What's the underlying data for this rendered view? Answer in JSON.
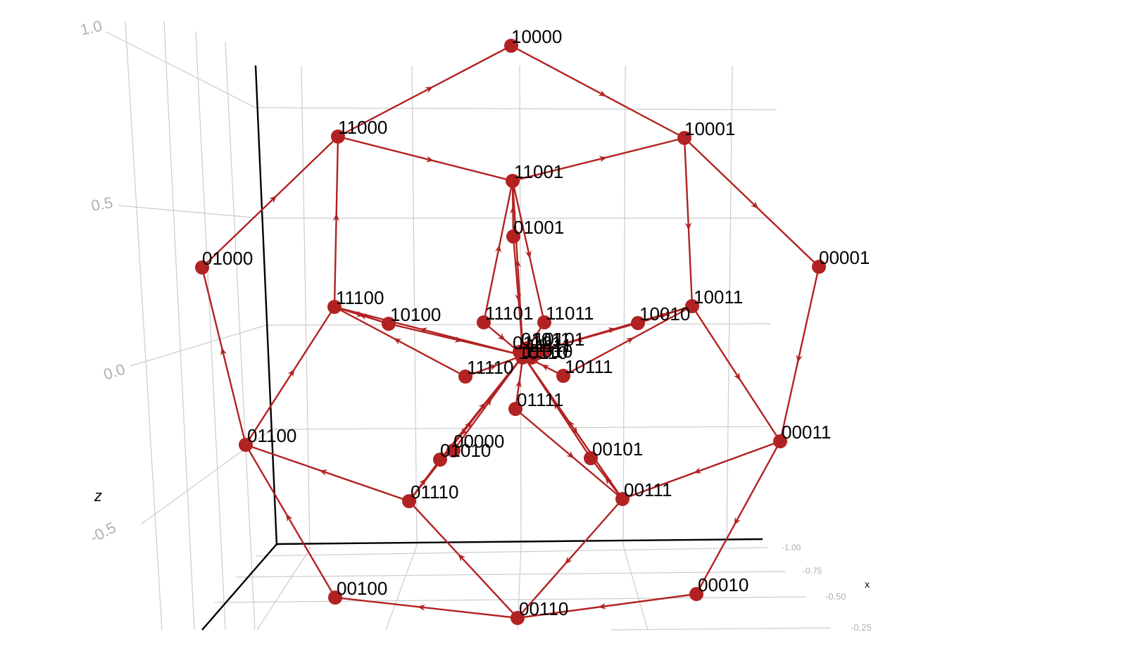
{
  "axes": {
    "z_title": "z",
    "x_title": "x",
    "z_ticks": [
      "1.0",
      "0.5",
      "0.0",
      "-0.5"
    ],
    "x_ticks": [
      "-1.00",
      "-0.75",
      "-0.50",
      "-0.25"
    ]
  },
  "colors": {
    "edge": "#b22222",
    "node": "#b22222"
  },
  "nodes": [
    {
      "id": "10000"
    },
    {
      "id": "11000"
    },
    {
      "id": "10001"
    },
    {
      "id": "11001"
    },
    {
      "id": "01001"
    },
    {
      "id": "01000"
    },
    {
      "id": "00001"
    },
    {
      "id": "11100"
    },
    {
      "id": "10100"
    },
    {
      "id": "11101"
    },
    {
      "id": "11011"
    },
    {
      "id": "10010"
    },
    {
      "id": "10011"
    },
    {
      "id": "11110"
    },
    {
      "id": "10111"
    },
    {
      "id": "01111"
    },
    {
      "id": "01100"
    },
    {
      "id": "00011"
    },
    {
      "id": "00000"
    },
    {
      "id": "01010"
    },
    {
      "id": "00101"
    },
    {
      "id": "01110"
    },
    {
      "id": "00111"
    },
    {
      "id": "00100"
    },
    {
      "id": "00010"
    },
    {
      "id": "00110"
    },
    {
      "id": "01101"
    },
    {
      "id": "01011"
    },
    {
      "id": "11111"
    },
    {
      "id": "10101"
    },
    {
      "id": "11010"
    },
    {
      "id": "10110"
    }
  ],
  "edges": [
    [
      "10000",
      "10001"
    ],
    [
      "11000",
      "10000"
    ],
    [
      "10001",
      "00001"
    ],
    [
      "01000",
      "11000"
    ],
    [
      "11000",
      "11001"
    ],
    [
      "10001",
      "10011"
    ],
    [
      "11001",
      "10001"
    ],
    [
      "11100",
      "11000"
    ],
    [
      "00001",
      "00011"
    ],
    [
      "01100",
      "01000"
    ],
    [
      "10011",
      "00011"
    ],
    [
      "01100",
      "11100"
    ],
    [
      "00011",
      "00111"
    ],
    [
      "00011",
      "00010"
    ],
    [
      "00111",
      "00110"
    ],
    [
      "01110",
      "01100"
    ],
    [
      "00100",
      "01100"
    ],
    [
      "00010",
      "00110"
    ],
    [
      "00110",
      "00100"
    ],
    [
      "00110",
      "01110"
    ],
    [
      "11001",
      "11011"
    ],
    [
      "11101",
      "11001"
    ],
    [
      "01001",
      "11001"
    ],
    [
      "11100",
      "10100"
    ],
    [
      "10100",
      "11100"
    ],
    [
      "10011",
      "10010"
    ],
    [
      "10010",
      "10011"
    ],
    [
      "11110",
      "11100"
    ],
    [
      "10111",
      "10011"
    ],
    [
      "01111",
      "00111"
    ],
    [
      "01110",
      "01010"
    ],
    [
      "00111",
      "00101"
    ],
    [
      "11101",
      "C"
    ],
    [
      "11011",
      "C"
    ],
    [
      "10100",
      "C"
    ],
    [
      "10010",
      "C"
    ],
    [
      "11110",
      "C"
    ],
    [
      "10111",
      "C"
    ],
    [
      "01111",
      "C"
    ],
    [
      "00000",
      "C"
    ],
    [
      "01010",
      "C"
    ],
    [
      "00101",
      "C"
    ],
    [
      "01001",
      "C"
    ],
    [
      "C",
      "01110"
    ],
    [
      "C",
      "00111"
    ],
    [
      "C",
      "11100"
    ],
    [
      "C",
      "10011"
    ],
    [
      "C",
      "11001"
    ],
    [
      "01110",
      "C"
    ],
    [
      "00111",
      "C"
    ]
  ]
}
